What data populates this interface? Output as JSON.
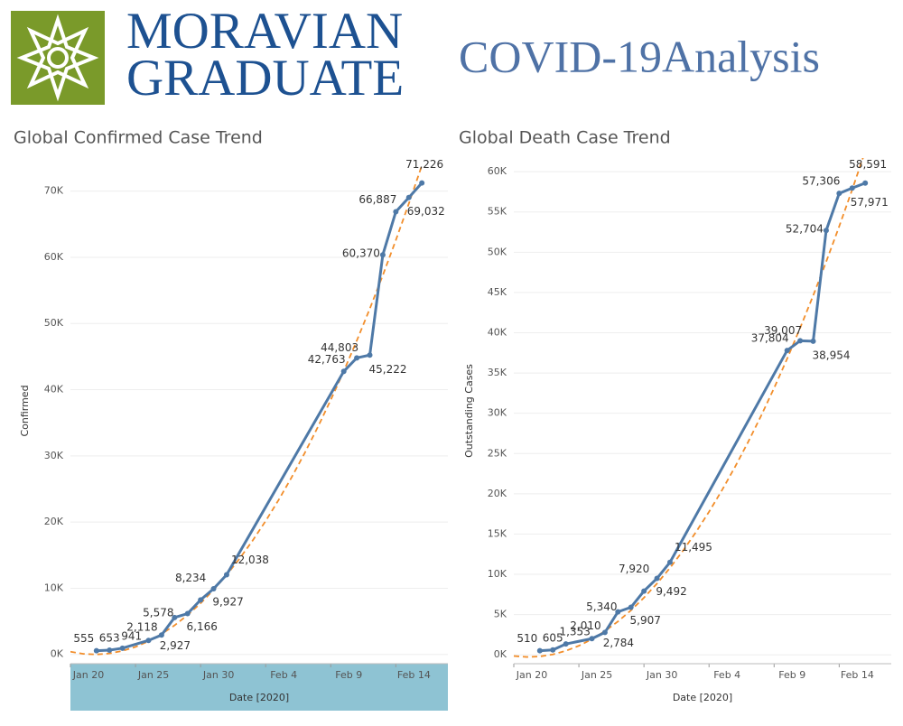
{
  "header": {
    "logo_line1": "MORAVIAN",
    "logo_line2": "GRADUATE",
    "title": "COVID-19Analysis"
  },
  "chart_data": [
    {
      "type": "line",
      "title": "Global Confirmed Case Trend",
      "x_label": "Date [2020]",
      "y_label": "Confirmed",
      "xlim": [
        "2020-01-20",
        "2020-02-18"
      ],
      "xticks": [
        {
          "value": "2020-01-20",
          "label": "Jan 20"
        },
        {
          "value": "2020-01-25",
          "label": "Jan 25"
        },
        {
          "value": "2020-01-30",
          "label": "Jan 30"
        },
        {
          "value": "2020-02-04",
          "label": "Feb 4"
        },
        {
          "value": "2020-02-09",
          "label": "Feb 9"
        },
        {
          "value": "2020-02-14",
          "label": "Feb 14"
        }
      ],
      "ylim": [
        -1400,
        75000
      ],
      "yticks": [
        {
          "value": 0,
          "label": "0K"
        },
        {
          "value": 10000,
          "label": "10K"
        },
        {
          "value": 20000,
          "label": "20K"
        },
        {
          "value": 30000,
          "label": "30K"
        },
        {
          "value": 40000,
          "label": "40K"
        },
        {
          "value": 50000,
          "label": "50K"
        },
        {
          "value": 60000,
          "label": "60K"
        },
        {
          "value": 70000,
          "label": "70K"
        }
      ],
      "x": [
        "2020-01-22",
        "2020-01-23",
        "2020-01-24",
        "2020-01-26",
        "2020-01-27",
        "2020-01-28",
        "2020-01-29",
        "2020-01-30",
        "2020-01-31",
        "2020-02-01",
        "2020-02-10",
        "2020-02-11",
        "2020-02-12",
        "2020-02-13",
        "2020-02-14",
        "2020-02-15",
        "2020-02-16"
      ],
      "color": "#4e79a7",
      "values": [
        555,
        653,
        941,
        2118,
        2927,
        5578,
        6166,
        8234,
        9927,
        12038,
        42763,
        44803,
        45222,
        60370,
        66887,
        69032,
        71226
      ],
      "value_labels": [
        "555",
        "653",
        "941",
        "2,118",
        "2,927",
        "5,578",
        "6,166",
        "8,234",
        "9,927",
        "12,038",
        "42,763",
        "44,803",
        "45,222",
        "60,370",
        "66,887",
        "69,032",
        "71,226"
      ],
      "trend": {
        "color": "#f28e2b",
        "x": [
          "2020-01-20",
          "2020-01-21",
          "2020-01-22",
          "2020-01-23",
          "2020-01-24",
          "2020-01-25",
          "2020-01-26",
          "2020-01-27",
          "2020-01-28",
          "2020-01-29",
          "2020-01-30",
          "2020-01-31",
          "2020-02-01",
          "2020-02-02",
          "2020-02-03",
          "2020-02-04",
          "2020-02-05",
          "2020-02-06",
          "2020-02-07",
          "2020-02-08",
          "2020-02-09",
          "2020-02-10",
          "2020-02-11",
          "2020-02-12",
          "2020-02-13",
          "2020-02-14",
          "2020-02-15",
          "2020-02-16"
        ],
        "values": [
          408,
          87,
          0,
          147,
          528,
          1143,
          1992,
          3075,
          4392,
          5943,
          7728,
          9747,
          12000,
          14487,
          17208,
          20163,
          23352,
          26775,
          30432,
          34323,
          38448,
          42807,
          47400,
          52227,
          57288,
          62583,
          68112,
          73875
        ]
      }
    },
    {
      "type": "line",
      "title": "Global Death Case Trend",
      "x_label": "Date [2020]",
      "y_label": "Outstanding Cases",
      "xlim": [
        "2020-01-20",
        "2020-02-18"
      ],
      "xticks": [
        {
          "value": "2020-01-20",
          "label": "Jan 20"
        },
        {
          "value": "2020-01-25",
          "label": "Jan 25"
        },
        {
          "value": "2020-01-30",
          "label": "Jan 30"
        },
        {
          "value": "2020-02-04",
          "label": "Feb 4"
        },
        {
          "value": "2020-02-09",
          "label": "Feb 9"
        },
        {
          "value": "2020-02-14",
          "label": "Feb 14"
        }
      ],
      "ylim": [
        -1100,
        61700
      ],
      "yticks": [
        {
          "value": 0,
          "label": "0K"
        },
        {
          "value": 5000,
          "label": "5K"
        },
        {
          "value": 10000,
          "label": "10K"
        },
        {
          "value": 15000,
          "label": "15K"
        },
        {
          "value": 20000,
          "label": "20K"
        },
        {
          "value": 25000,
          "label": "25K"
        },
        {
          "value": 30000,
          "label": "30K"
        },
        {
          "value": 35000,
          "label": "35K"
        },
        {
          "value": 40000,
          "label": "40K"
        },
        {
          "value": 45000,
          "label": "45K"
        },
        {
          "value": 50000,
          "label": "50K"
        },
        {
          "value": 55000,
          "label": "55K"
        },
        {
          "value": 60000,
          "label": "60K"
        }
      ],
      "x": [
        "2020-01-22",
        "2020-01-23",
        "2020-01-24",
        "2020-01-26",
        "2020-01-27",
        "2020-01-28",
        "2020-01-29",
        "2020-01-30",
        "2020-01-31",
        "2020-02-01",
        "2020-02-10",
        "2020-02-11",
        "2020-02-12",
        "2020-02-13",
        "2020-02-14",
        "2020-02-15",
        "2020-02-16"
      ],
      "color": "#4e79a7",
      "values": [
        510,
        605,
        1353,
        2010,
        2784,
        5340,
        5907,
        7920,
        9492,
        11495,
        37804,
        39007,
        38954,
        52704,
        57306,
        57971,
        58591
      ],
      "value_labels": [
        "510",
        "605",
        "1,353",
        "2,010",
        "2,784",
        "5,340",
        "5,907",
        "7,920",
        "9,492",
        "11,495",
        "37,804",
        "39,007",
        "38,954",
        "52,704",
        "57,306",
        "57,971",
        "58,591"
      ],
      "trend": {
        "color": "#f28e2b",
        "x": [
          "2020-01-20",
          "2020-01-21",
          "2020-01-22",
          "2020-01-23",
          "2020-01-24",
          "2020-01-25",
          "2020-01-26",
          "2020-01-27",
          "2020-01-28",
          "2020-01-29",
          "2020-01-30",
          "2020-01-31",
          "2020-02-01",
          "2020-02-02",
          "2020-02-03",
          "2020-02-04",
          "2020-02-05",
          "2020-02-06",
          "2020-02-07",
          "2020-02-08",
          "2020-02-09",
          "2020-02-10",
          "2020-02-11",
          "2020-02-12",
          "2020-02-13",
          "2020-02-14",
          "2020-02-15",
          "2020-02-16"
        ],
        "values": [
          -144,
          -266,
          -200,
          54,
          496,
          1126,
          1944,
          2950,
          4144,
          5526,
          7096,
          8854,
          10800,
          12934,
          15256,
          17766,
          20464,
          23350,
          26424,
          29686,
          33136,
          36774,
          40600,
          44614,
          48816,
          53206,
          57784,
          62550
        ]
      }
    }
  ]
}
